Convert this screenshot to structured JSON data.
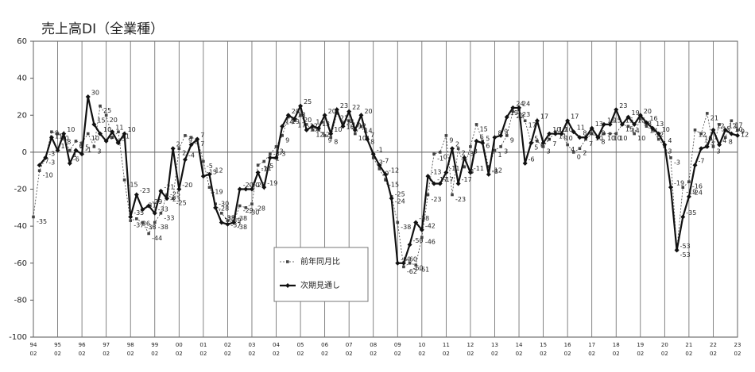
{
  "chart_data": {
    "type": "line",
    "title": "売上高DI（全業種）",
    "categories": [
      "94 02",
      null,
      null,
      null,
      "95 02",
      null,
      null,
      null,
      "96 02",
      null,
      null,
      null,
      "97 02",
      null,
      null,
      null,
      "98 02",
      null,
      null,
      null,
      "99 02",
      null,
      null,
      null,
      "00 02",
      null,
      null,
      null,
      "01 02",
      null,
      null,
      null,
      "02 02",
      null,
      null,
      null,
      "03 02",
      null,
      null,
      null,
      "04 02",
      null,
      null,
      null,
      "05 02",
      null,
      null,
      null,
      "06 02",
      null,
      null,
      null,
      "07 02",
      null,
      null,
      null,
      "08 02",
      null,
      null,
      null,
      "09 02",
      null,
      null,
      null,
      "10 02",
      null,
      null,
      null,
      "11 02",
      null,
      null,
      null,
      "12 02",
      null,
      null,
      null,
      "13 02",
      null,
      null,
      null,
      "14 02",
      null,
      null,
      null,
      "15 02",
      null,
      null,
      null,
      "16 02",
      null,
      null,
      null,
      "17 02",
      null,
      null,
      null,
      "18 02",
      null,
      null,
      null,
      "19 02",
      null,
      null,
      null,
      "20 02",
      null,
      null,
      null,
      "21 02",
      null,
      null,
      null,
      "22 02",
      null,
      null,
      null,
      "23 02"
    ],
    "series": [
      {
        "name": "前年同月比",
        "color": "#444444",
        "style": "dashed",
        "values": [
          -35,
          -10,
          -3,
          11,
          10,
          8,
          1,
          6,
          5,
          10,
          3,
          25,
          20,
          8,
          11,
          -15,
          -37,
          -36,
          -38,
          -44,
          -38,
          -33,
          -23,
          -25,
          2,
          9,
          8,
          7,
          -5,
          -19,
          -28,
          -33,
          -37,
          -38,
          -29,
          -30,
          -28,
          -7,
          -5,
          -1,
          3,
          9,
          19,
          17,
          20,
          15,
          12,
          12,
          9,
          8,
          21,
          16,
          17,
          10,
          14,
          8,
          -3,
          -9,
          -15,
          -24,
          -38,
          -62,
          -60,
          -61,
          -46,
          -23,
          -1,
          0,
          9,
          -23,
          2,
          -8,
          3,
          15,
          6,
          -8,
          1,
          3,
          9,
          22,
          23,
          17,
          5,
          6,
          3,
          7,
          11,
          10,
          4,
          0,
          2,
          7,
          10,
          8,
          10,
          10,
          10,
          15,
          14,
          10,
          18,
          14,
          12,
          7,
          3,
          -3,
          -53,
          -19,
          -16,
          12,
          10,
          21,
          3,
          15,
          8,
          17,
          12
        ]
      },
      {
        "name": "次期見通し",
        "color": "#111111",
        "style": "solid",
        "values": [
          null,
          -7,
          -3,
          8,
          1,
          10,
          -6,
          1,
          -1,
          30,
          15,
          10,
          6,
          11,
          5,
          10,
          -35,
          -23,
          -31,
          -29,
          -33,
          -21,
          -25,
          2,
          -20,
          -4,
          4,
          7,
          -13,
          -12,
          -30,
          -38,
          -39,
          -38,
          -20,
          -20,
          -20,
          -11,
          -19,
          -3,
          -3,
          14,
          20,
          18,
          25,
          12,
          14,
          13,
          20,
          10,
          23,
          14,
          22,
          12,
          20,
          7,
          -1,
          -7,
          -12,
          -25,
          -60,
          -60,
          -50,
          -38,
          -42,
          -13,
          -17,
          -17,
          -11,
          2,
          -17,
          -3,
          -11,
          6,
          5,
          -12,
          8,
          9,
          19,
          24,
          24,
          -6,
          5,
          17,
          5,
          10,
          10,
          10,
          17,
          11,
          8,
          8,
          13,
          8,
          15,
          15,
          23,
          15,
          19,
          15,
          20,
          16,
          13,
          10,
          4,
          -19,
          -53,
          -35,
          -24,
          -7,
          2,
          3,
          12,
          4,
          12,
          10,
          9
        ]
      }
    ],
    "ylim": [
      -100,
      60
    ],
    "yticks": [
      -100,
      -80,
      -60,
      -40,
      -20,
      0,
      20,
      40,
      60
    ]
  }
}
